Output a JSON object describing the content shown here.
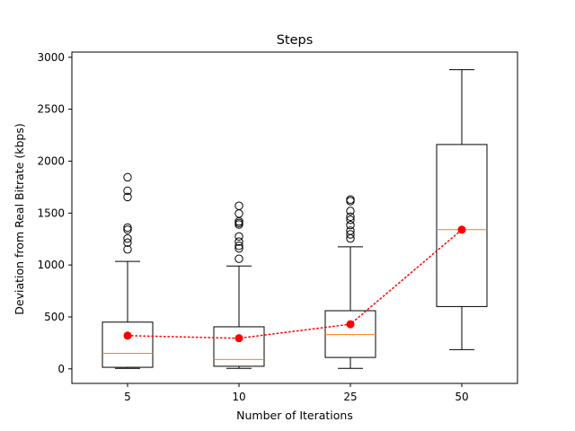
{
  "chart_data": {
    "type": "box",
    "title": "Steps",
    "xlabel": "Number of Iterations",
    "ylabel": "Deviation from Real Bitrate (kbps)",
    "ylim": [
      -140,
      3050
    ],
    "yticks": [
      0,
      500,
      1000,
      1500,
      2000,
      2500,
      3000
    ],
    "categories": [
      "5",
      "10",
      "25",
      "50"
    ],
    "boxes": [
      {
        "category": "5",
        "whisker_low": 5,
        "q1": 15,
        "median": 150,
        "q3": 450,
        "whisker_high": 1035,
        "mean": 320,
        "outliers": [
          1150,
          1215,
          1255,
          1340,
          1360,
          1655,
          1715,
          1845
        ]
      },
      {
        "category": "10",
        "whisker_low": 5,
        "q1": 25,
        "median": 90,
        "q3": 405,
        "whisker_high": 990,
        "mean": 295,
        "outliers": [
          1060,
          1160,
          1185,
          1225,
          1275,
          1390,
          1405,
          1420,
          1495,
          1570
        ]
      },
      {
        "category": "25",
        "whisker_low": 5,
        "q1": 110,
        "median": 330,
        "q3": 560,
        "whisker_high": 1175,
        "mean": 430,
        "outliers": [
          1255,
          1295,
          1330,
          1385,
          1435,
          1465,
          1520,
          1615,
          1630
        ]
      },
      {
        "category": "50",
        "whisker_low": 185,
        "q1": 600,
        "median": 1340,
        "q3": 2160,
        "whisker_high": 2880,
        "mean": 1340,
        "outliers": []
      }
    ],
    "mean_line_style": "dotted",
    "colors": {
      "box": "#000000",
      "median": "#ff7f0e",
      "mean": "#ff0000"
    },
    "grid": false
  }
}
